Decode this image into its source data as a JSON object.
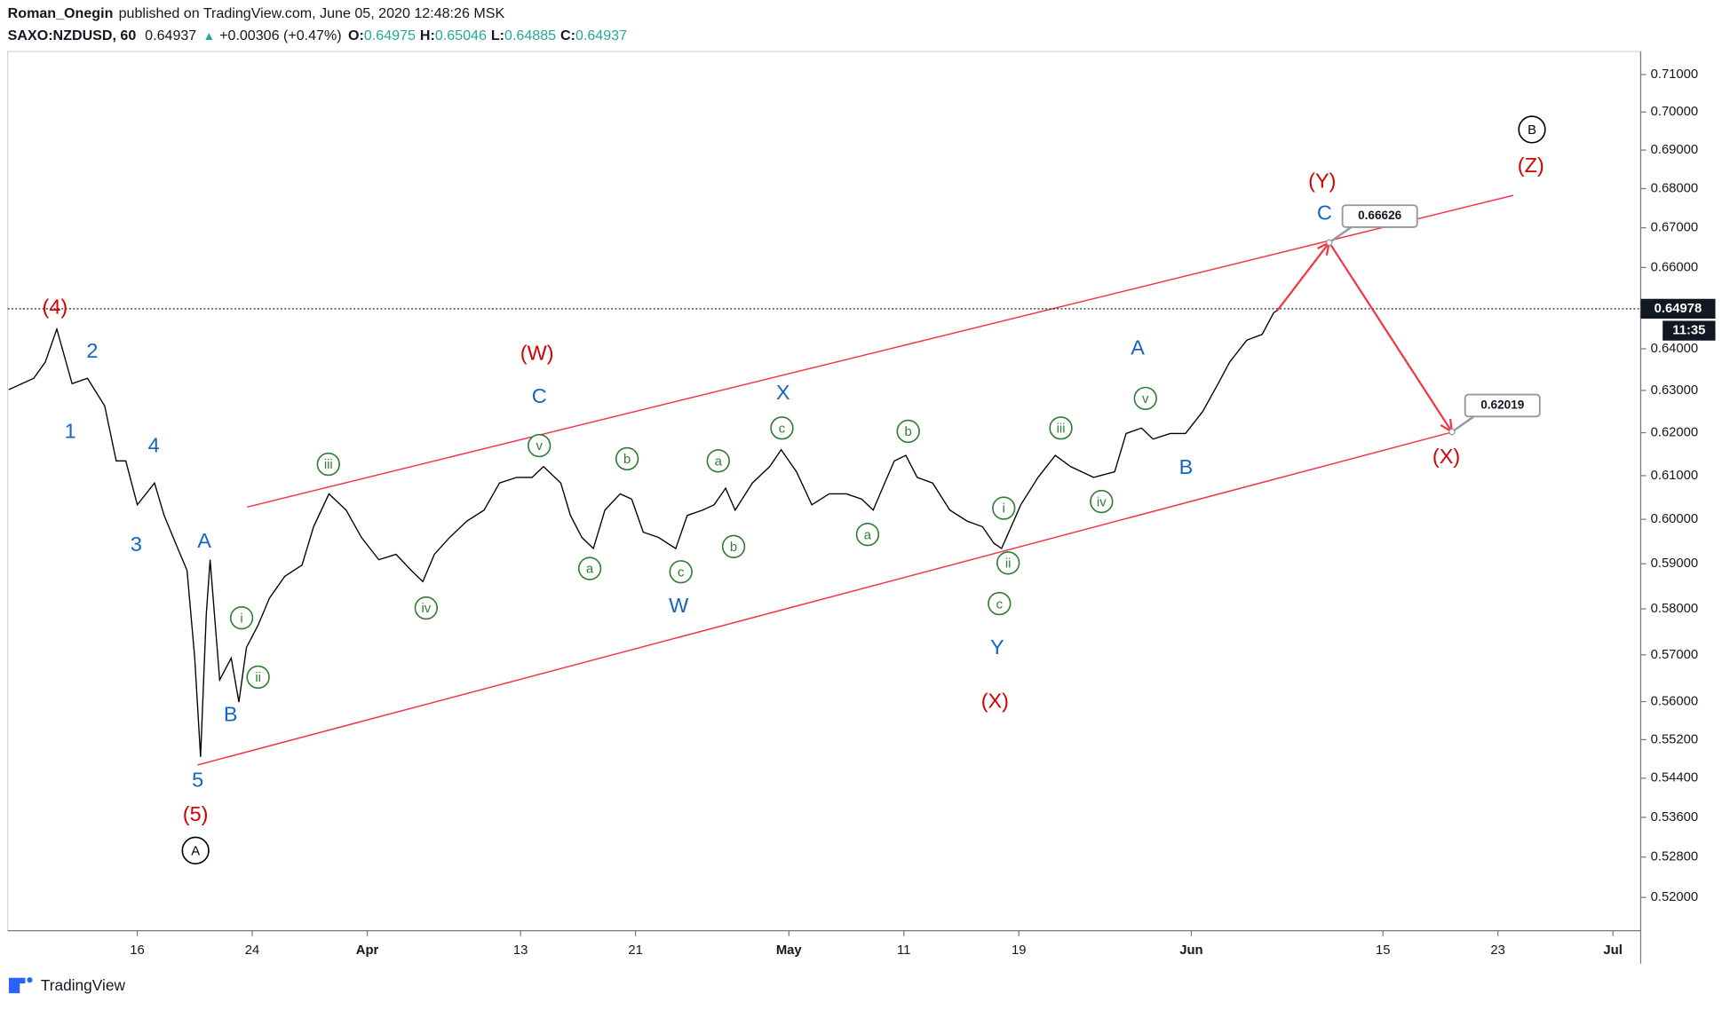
{
  "header": {
    "author": "Roman_Onegin",
    "published": "published on TradingView.com, June 05, 2020 12:48:26 MSK",
    "symbol": "SAXO:NZDUSD, 60",
    "last": "0.64937",
    "direction": "▲",
    "change": "+0.00306 (+0.47%)",
    "ohlc": [
      {
        "key": "O:",
        "value": "0.64975"
      },
      {
        "key": "H:",
        "value": "0.65046"
      },
      {
        "key": "L:",
        "value": "0.64885"
      },
      {
        "key": "C:",
        "value": "0.64937"
      }
    ]
  },
  "chart_data": {
    "type": "line",
    "log_scale": true,
    "color": "#000000",
    "x": [
      -6.7,
      -5.4,
      -4.8,
      -4.2,
      -3.4,
      -2.6,
      -1.7,
      -1.1,
      -0.6,
      0,
      0.9,
      1.4,
      2.0,
      2.6,
      3.0,
      3.3,
      3.6,
      3.8,
      4.3,
      4.9,
      5.3,
      5.7,
      6.3,
      6.9,
      7.7,
      8.6,
      9.2,
      10.0,
      10.9,
      11.7,
      12.6,
      13.5,
      14.3,
      14.9,
      15.5,
      16.3,
      17.2,
      18.1,
      18.9,
      19.8,
      20.6,
      21.2,
      22.1,
      22.6,
      23.2,
      23.8,
      24.4,
      25.2,
      25.8,
      26.4,
      27.2,
      28.1,
      28.7,
      29.5,
      30.1,
      30.7,
      31.2,
      32.1,
      33.0,
      33.6,
      34.4,
      35.2,
      36.1,
      37.0,
      37.8,
      38.4,
      39.0,
      39.5,
      40.1,
      40.7,
      41.5,
      42.4,
      43.3,
      44.1,
      44.7,
      45.1,
      45.6,
      46.1,
      47.0,
      47.9,
      48.7,
      49.9,
      51.0,
      51.6,
      52.4,
      53.0,
      53.9,
      54.7,
      55.6,
      56.4,
      57.0,
      57.9,
      58.7,
      59.3,
      59.5
    ],
    "values": [
      0.6302,
      0.6329,
      0.6368,
      0.6448,
      0.6316,
      0.6329,
      0.6263,
      0.6134,
      0.6134,
      0.6033,
      0.6083,
      0.6009,
      0.5946,
      0.5885,
      0.5693,
      0.5484,
      0.5788,
      0.5909,
      0.5646,
      0.5693,
      0.5599,
      0.5716,
      0.5764,
      0.5824,
      0.5872,
      0.5897,
      0.5983,
      0.6058,
      0.6021,
      0.5959,
      0.5909,
      0.5921,
      0.5885,
      0.586,
      0.5921,
      0.5959,
      0.5996,
      0.6021,
      0.6083,
      0.6096,
      0.6096,
      0.6121,
      0.6083,
      0.6009,
      0.5959,
      0.5934,
      0.6021,
      0.6058,
      0.6046,
      0.5971,
      0.5959,
      0.5934,
      0.6009,
      0.6021,
      0.6033,
      0.6071,
      0.6021,
      0.6083,
      0.6121,
      0.616,
      0.6109,
      0.6033,
      0.6058,
      0.6058,
      0.6046,
      0.6021,
      0.6083,
      0.6134,
      0.6147,
      0.6096,
      0.6083,
      0.6021,
      0.5996,
      0.5983,
      0.5946,
      0.5934,
      0.5983,
      0.6033,
      0.6096,
      0.6147,
      0.6121,
      0.6096,
      0.6109,
      0.6198,
      0.6211,
      0.6185,
      0.6198,
      0.6198,
      0.625,
      0.6316,
      0.6368,
      0.6421,
      0.6435,
      0.6488,
      0.6494
    ],
    "xlim": [
      -6.76,
      78.45
    ],
    "xticks": [
      {
        "value": 0,
        "label": "16"
      },
      {
        "value": 6,
        "label": "24"
      },
      {
        "value": 12,
        "label": "Apr"
      },
      {
        "value": 20,
        "label": "13"
      },
      {
        "value": 26,
        "label": "21"
      },
      {
        "value": 34,
        "label": "May"
      },
      {
        "value": 40,
        "label": "11"
      },
      {
        "value": 46,
        "label": "19"
      },
      {
        "value": 55,
        "label": "Jun"
      },
      {
        "value": 65,
        "label": "15"
      },
      {
        "value": 71,
        "label": "23"
      },
      {
        "value": 77,
        "label": "Jul"
      }
    ],
    "ylim": [
      0.5135,
      0.7162
    ],
    "yticks": [
      {
        "value": 0.71,
        "label": "0.71000"
      },
      {
        "value": 0.7,
        "label": "0.70000"
      },
      {
        "value": 0.69,
        "label": "0.69000"
      },
      {
        "value": 0.68,
        "label": "0.68000"
      },
      {
        "value": 0.67,
        "label": "0.67000"
      },
      {
        "value": 0.66,
        "label": "0.66000"
      },
      {
        "value": 0.64,
        "label": "0.64000"
      },
      {
        "value": 0.63,
        "label": "0.63000"
      },
      {
        "value": 0.62,
        "label": "0.62000"
      },
      {
        "value": 0.61,
        "label": "0.61000"
      },
      {
        "value": 0.6,
        "label": "0.60000"
      },
      {
        "value": 0.59,
        "label": "0.59000"
      },
      {
        "value": 0.58,
        "label": "0.58000"
      },
      {
        "value": 0.57,
        "label": "0.57000"
      },
      {
        "value": 0.56,
        "label": "0.56000"
      },
      {
        "value": 0.552,
        "label": "0.55200"
      },
      {
        "value": 0.544,
        "label": "0.54400"
      },
      {
        "value": 0.536,
        "label": "0.53600"
      },
      {
        "value": 0.528,
        "label": "0.52800"
      },
      {
        "value": 0.52,
        "label": "0.52000"
      }
    ],
    "last_price": 0.64978,
    "time_left": "11:35",
    "projection": {
      "x": [
        62.2,
        68.6
      ],
      "values": [
        0.66626,
        0.62019
      ],
      "color": "#f23645"
    },
    "wave_labels": [
      {
        "color": "#d50000",
        "style": "plain",
        "labels": [
          "(4)",
          "(5)",
          "(W)",
          "(X)",
          "(Y)",
          "(Z)",
          "(X)"
        ]
      },
      {
        "color": "#1565c0",
        "style": "plain",
        "labels": [
          "2",
          "1",
          "4",
          "3",
          "A",
          "B",
          "5",
          "C",
          "X",
          "W",
          "Y",
          "A",
          "B",
          "C"
        ]
      },
      {
        "color": "#2e7d32",
        "style": "circle",
        "labels": [
          "i",
          "ii",
          "iii",
          "iv",
          "v",
          "a",
          "b",
          "c",
          "a",
          "b",
          "c",
          "a",
          "b",
          "c",
          "i",
          "ii",
          "iii",
          "iv",
          "v"
        ]
      },
      {
        "color": "#000000",
        "style": "circle",
        "labels": [
          "A",
          "B"
        ]
      }
    ]
  },
  "footer": {
    "brand": "TradingView"
  }
}
